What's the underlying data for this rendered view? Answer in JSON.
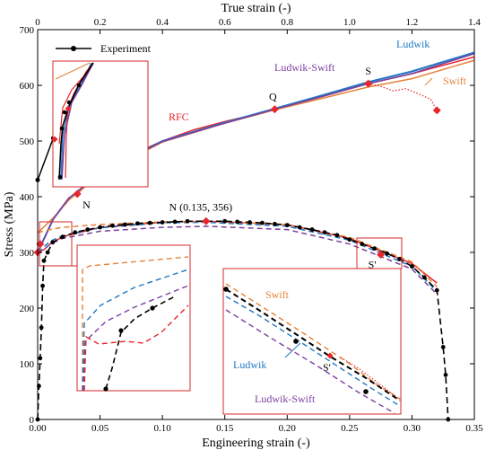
{
  "chart_data": {
    "type": "line",
    "title": "",
    "xlabel_bottom": "Engineering strain (-)",
    "xlabel_top": "True strain (-)",
    "ylabel": "Stress (MPa)",
    "xlim_bottom": [
      0,
      0.35
    ],
    "xticks_bottom": [
      "0.00",
      "0.05",
      "0.10",
      "0.15",
      "0.20",
      "0.25",
      "0.30",
      "0.35"
    ],
    "xlim_top": [
      0,
      1.4
    ],
    "xticks_top": [
      "0",
      "0.2",
      "0.4",
      "0.6",
      "0.8",
      "1.0",
      "1.2",
      "1.4"
    ],
    "ylim": [
      0,
      700
    ],
    "yticks": [
      "0",
      "100",
      "200",
      "300",
      "400",
      "500",
      "600",
      "700"
    ],
    "grid": false,
    "legend": {
      "position": "top-left",
      "label": "Experiment"
    },
    "colors": {
      "experiment": "#000000",
      "rfc": "#e8262b",
      "ludwik": "#1f77c4",
      "swift": "#e6823a",
      "ludwik_swift": "#7b3fa0",
      "ludwik_true": "#3f4fa8",
      "inset_frame": "#d42a2a",
      "marker": "#e8262b"
    },
    "annotations": {
      "N_eng": "N (0.135, 356)",
      "N_true": "N",
      "Q": "Q",
      "S": "S",
      "S_prime": "S'",
      "S_prime_inset": "S'",
      "RFC": "RFC",
      "Ludwik": "Ludwik",
      "Swift": "Swift",
      "Ludwik_Swift": "Ludwik-Swift",
      "inset_swift": "Swift",
      "inset_ludwik": "Ludwik",
      "inset_ludwik_swift": "Ludwik-Swift"
    },
    "series_true_strain_axis": [
      {
        "name": "Experiment",
        "x": [
          0.0,
          0.05,
          0.08,
          0.1,
          0.11,
          0.12,
          0.13
        ],
        "y": [
          430,
          505,
          545,
          565,
          585,
          600,
          605
        ]
      },
      {
        "name": "RFC",
        "x": [
          0.0,
          0.05,
          0.1,
          0.127,
          0.2,
          0.3,
          0.4,
          0.5,
          0.6,
          0.7,
          0.76,
          0.9,
          1.06,
          1.2,
          1.4
        ],
        "y": [
          300,
          360,
          398,
          405,
          445,
          475,
          500,
          520,
          535,
          548,
          557,
          578,
          603,
          621,
          651
        ]
      },
      {
        "name": "Ludwik",
        "x": [
          0.0,
          0.05,
          0.1,
          0.2,
          0.4,
          0.6,
          0.76,
          0.9,
          1.06,
          1.2,
          1.4
        ],
        "y": [
          300,
          360,
          397,
          442,
          500,
          533,
          558,
          580,
          606,
          625,
          659
        ]
      },
      {
        "name": "Swift",
        "x": [
          0.0,
          0.05,
          0.1,
          0.2,
          0.4,
          0.6,
          0.76,
          0.9,
          1.06,
          1.2,
          1.4
        ],
        "y": [
          335,
          362,
          394,
          440,
          498,
          532,
          556,
          575,
          597,
          612,
          645
        ]
      },
      {
        "name": "Ludwik-Swift",
        "x": [
          0.0,
          0.05,
          0.1,
          0.2,
          0.4,
          0.6,
          0.76,
          0.9,
          1.06,
          1.2,
          1.4
        ],
        "y": [
          300,
          360,
          397,
          442,
          499,
          532,
          557,
          578,
          603,
          621,
          657
        ]
      }
    ],
    "experiment_fracture_true": {
      "x": [
        1.06,
        1.1,
        1.14,
        1.18,
        1.22,
        1.26,
        1.28
      ],
      "y": [
        603,
        598,
        590,
        594,
        585,
        575,
        555
      ]
    },
    "markers_true": [
      {
        "label": "N",
        "x": 0.127,
        "y": 405
      },
      {
        "label": "Q",
        "x": 0.76,
        "y": 557
      },
      {
        "label": "S",
        "x": 1.06,
        "y": 603
      },
      {
        "label": "",
        "x": 1.28,
        "y": 555
      }
    ],
    "series_engineering_strain_axis": [
      {
        "name": "Experiment",
        "x": [
          0.0,
          0.001,
          0.002,
          0.003,
          0.004,
          0.005,
          0.008,
          0.012,
          0.02,
          0.03,
          0.04,
          0.05,
          0.06,
          0.07,
          0.08,
          0.09,
          0.1,
          0.11,
          0.12,
          0.135,
          0.15,
          0.16,
          0.17,
          0.18,
          0.19,
          0.2,
          0.21,
          0.22,
          0.23,
          0.24,
          0.25,
          0.26,
          0.27,
          0.28,
          0.29,
          0.3,
          0.31,
          0.32,
          0.325,
          0.327,
          0.329
        ],
        "y": [
          0,
          60,
          110,
          165,
          240,
          285,
          300,
          318,
          328,
          336,
          341,
          345,
          348,
          350,
          352,
          353,
          354,
          355,
          356,
          356,
          356,
          355,
          354,
          353,
          351,
          349,
          345,
          341,
          336,
          331,
          323,
          315,
          307,
          298,
          288,
          275,
          255,
          232,
          130,
          80,
          0
        ]
      },
      {
        "name": "RFC",
        "x": [
          0.0,
          0.005,
          0.01,
          0.02,
          0.05,
          0.1,
          0.135,
          0.2,
          0.25,
          0.3,
          0.32
        ],
        "y": [
          300,
          305,
          315,
          328,
          345,
          354,
          356,
          350,
          325,
          280,
          245
        ]
      },
      {
        "name": "Ludwik",
        "x": [
          0.0,
          0.005,
          0.01,
          0.02,
          0.05,
          0.1,
          0.135,
          0.2,
          0.25,
          0.3,
          0.32
        ],
        "y": [
          300,
          310,
          320,
          330,
          344,
          353,
          354,
          347,
          322,
          275,
          230
        ]
      },
      {
        "name": "Swift",
        "x": [
          0.0,
          0.005,
          0.01,
          0.02,
          0.05,
          0.1,
          0.135,
          0.2,
          0.25,
          0.3,
          0.32
        ],
        "y": [
          336,
          338,
          341,
          345,
          350,
          355,
          356,
          350,
          327,
          283,
          238
        ]
      },
      {
        "name": "Ludwik-Swift",
        "x": [
          0.0,
          0.005,
          0.01,
          0.02,
          0.05,
          0.1,
          0.135,
          0.2,
          0.25,
          0.3,
          0.32
        ],
        "y": [
          300,
          305,
          315,
          325,
          338,
          345,
          347,
          341,
          315,
          270,
          225
        ]
      }
    ],
    "markers_eng": [
      {
        "label": "N (0.135, 356)",
        "x": 0.135,
        "y": 356
      },
      {
        "label": "S'",
        "x": 0.275,
        "y": 296
      },
      {
        "label": "",
        "x": 0.0,
        "y": 300
      },
      {
        "label": "",
        "x": 0.002,
        "y": 315
      }
    ]
  }
}
